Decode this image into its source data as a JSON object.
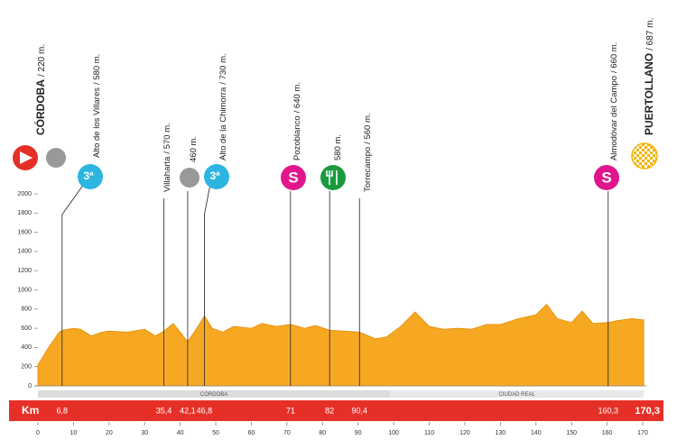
{
  "chart_data": {
    "type": "area",
    "color": "#f7a823",
    "x": [
      0,
      3,
      6,
      7,
      10,
      12,
      15,
      18,
      20,
      25,
      30,
      33,
      35.4,
      38,
      40,
      42.1,
      45,
      46.8,
      49,
      52,
      55,
      60,
      63,
      67,
      71,
      75,
      78,
      82,
      86,
      90.4,
      95,
      98,
      102,
      106,
      110,
      114,
      118,
      122,
      126,
      130,
      135,
      140,
      143,
      146,
      150,
      153,
      156,
      160.3,
      163,
      167,
      170.3
    ],
    "values": [
      220,
      400,
      560,
      580,
      600,
      590,
      520,
      560,
      570,
      560,
      590,
      520,
      570,
      650,
      560,
      460,
      620,
      730,
      600,
      560,
      620,
      600,
      650,
      620,
      640,
      600,
      630,
      580,
      570,
      560,
      490,
      510,
      620,
      770,
      620,
      590,
      600,
      590,
      640,
      640,
      700,
      740,
      850,
      700,
      660,
      780,
      650,
      660,
      680,
      700,
      687
    ],
    "xlim": [
      0,
      170
    ],
    "xticks": [
      0,
      10,
      20,
      30,
      40,
      50,
      60,
      70,
      80,
      90,
      100,
      110,
      120,
      130,
      140,
      150,
      160,
      170
    ],
    "ylim": [
      0,
      2000
    ],
    "yticks": [
      0,
      200,
      400,
      600,
      800,
      1000,
      1200,
      1400,
      1600,
      1800,
      2000
    ],
    "km_title": "Km",
    "icon_texts": {
      "climb": "3ª",
      "sprint": "S"
    },
    "regions": [
      {
        "name": "CÓRDOBA",
        "from": 0,
        "to": 99
      },
      {
        "name": "CIUDAD REAL",
        "from": 99,
        "to": 170.3
      }
    ],
    "waypoints": [
      {
        "name": "CÓRDOBA",
        "elevation_label": "/ 220 m.",
        "km": 0
      },
      {
        "name": "Alto de los Villares",
        "elevation_label": "/ 580 m.",
        "km": 6.8,
        "km_label": "6,8"
      },
      {
        "name": "Villaharta",
        "elevation_label": "/ 570 m.",
        "km": 35.4,
        "km_label": "35,4"
      },
      {
        "elevation_label": "460 m.",
        "km": 42.1,
        "km_label": "42,1"
      },
      {
        "name": "Alto de la Chimorra",
        "elevation_label": "/ 730 m.",
        "km": 46.8,
        "km_label": "46,8"
      },
      {
        "name": "Pozoblanco",
        "elevation_label": "/ 640 m.",
        "km": 71,
        "km_label": "71"
      },
      {
        "elevation_label": "580 m.",
        "km": 82,
        "km_label": "82"
      },
      {
        "name": "Torrecampo",
        "elevation_label": "/ 560 m.",
        "km": 90.4,
        "km_label": "90,4"
      },
      {
        "name": "Almodóvar del Campo",
        "elevation_label": "/ 660 m.",
        "km": 160.3,
        "km_label": "160,3"
      },
      {
        "name": "PUERTOLLANO",
        "elevation_label": "/ 687 m.",
        "km": 170.3,
        "km_label": "170,3"
      }
    ]
  }
}
